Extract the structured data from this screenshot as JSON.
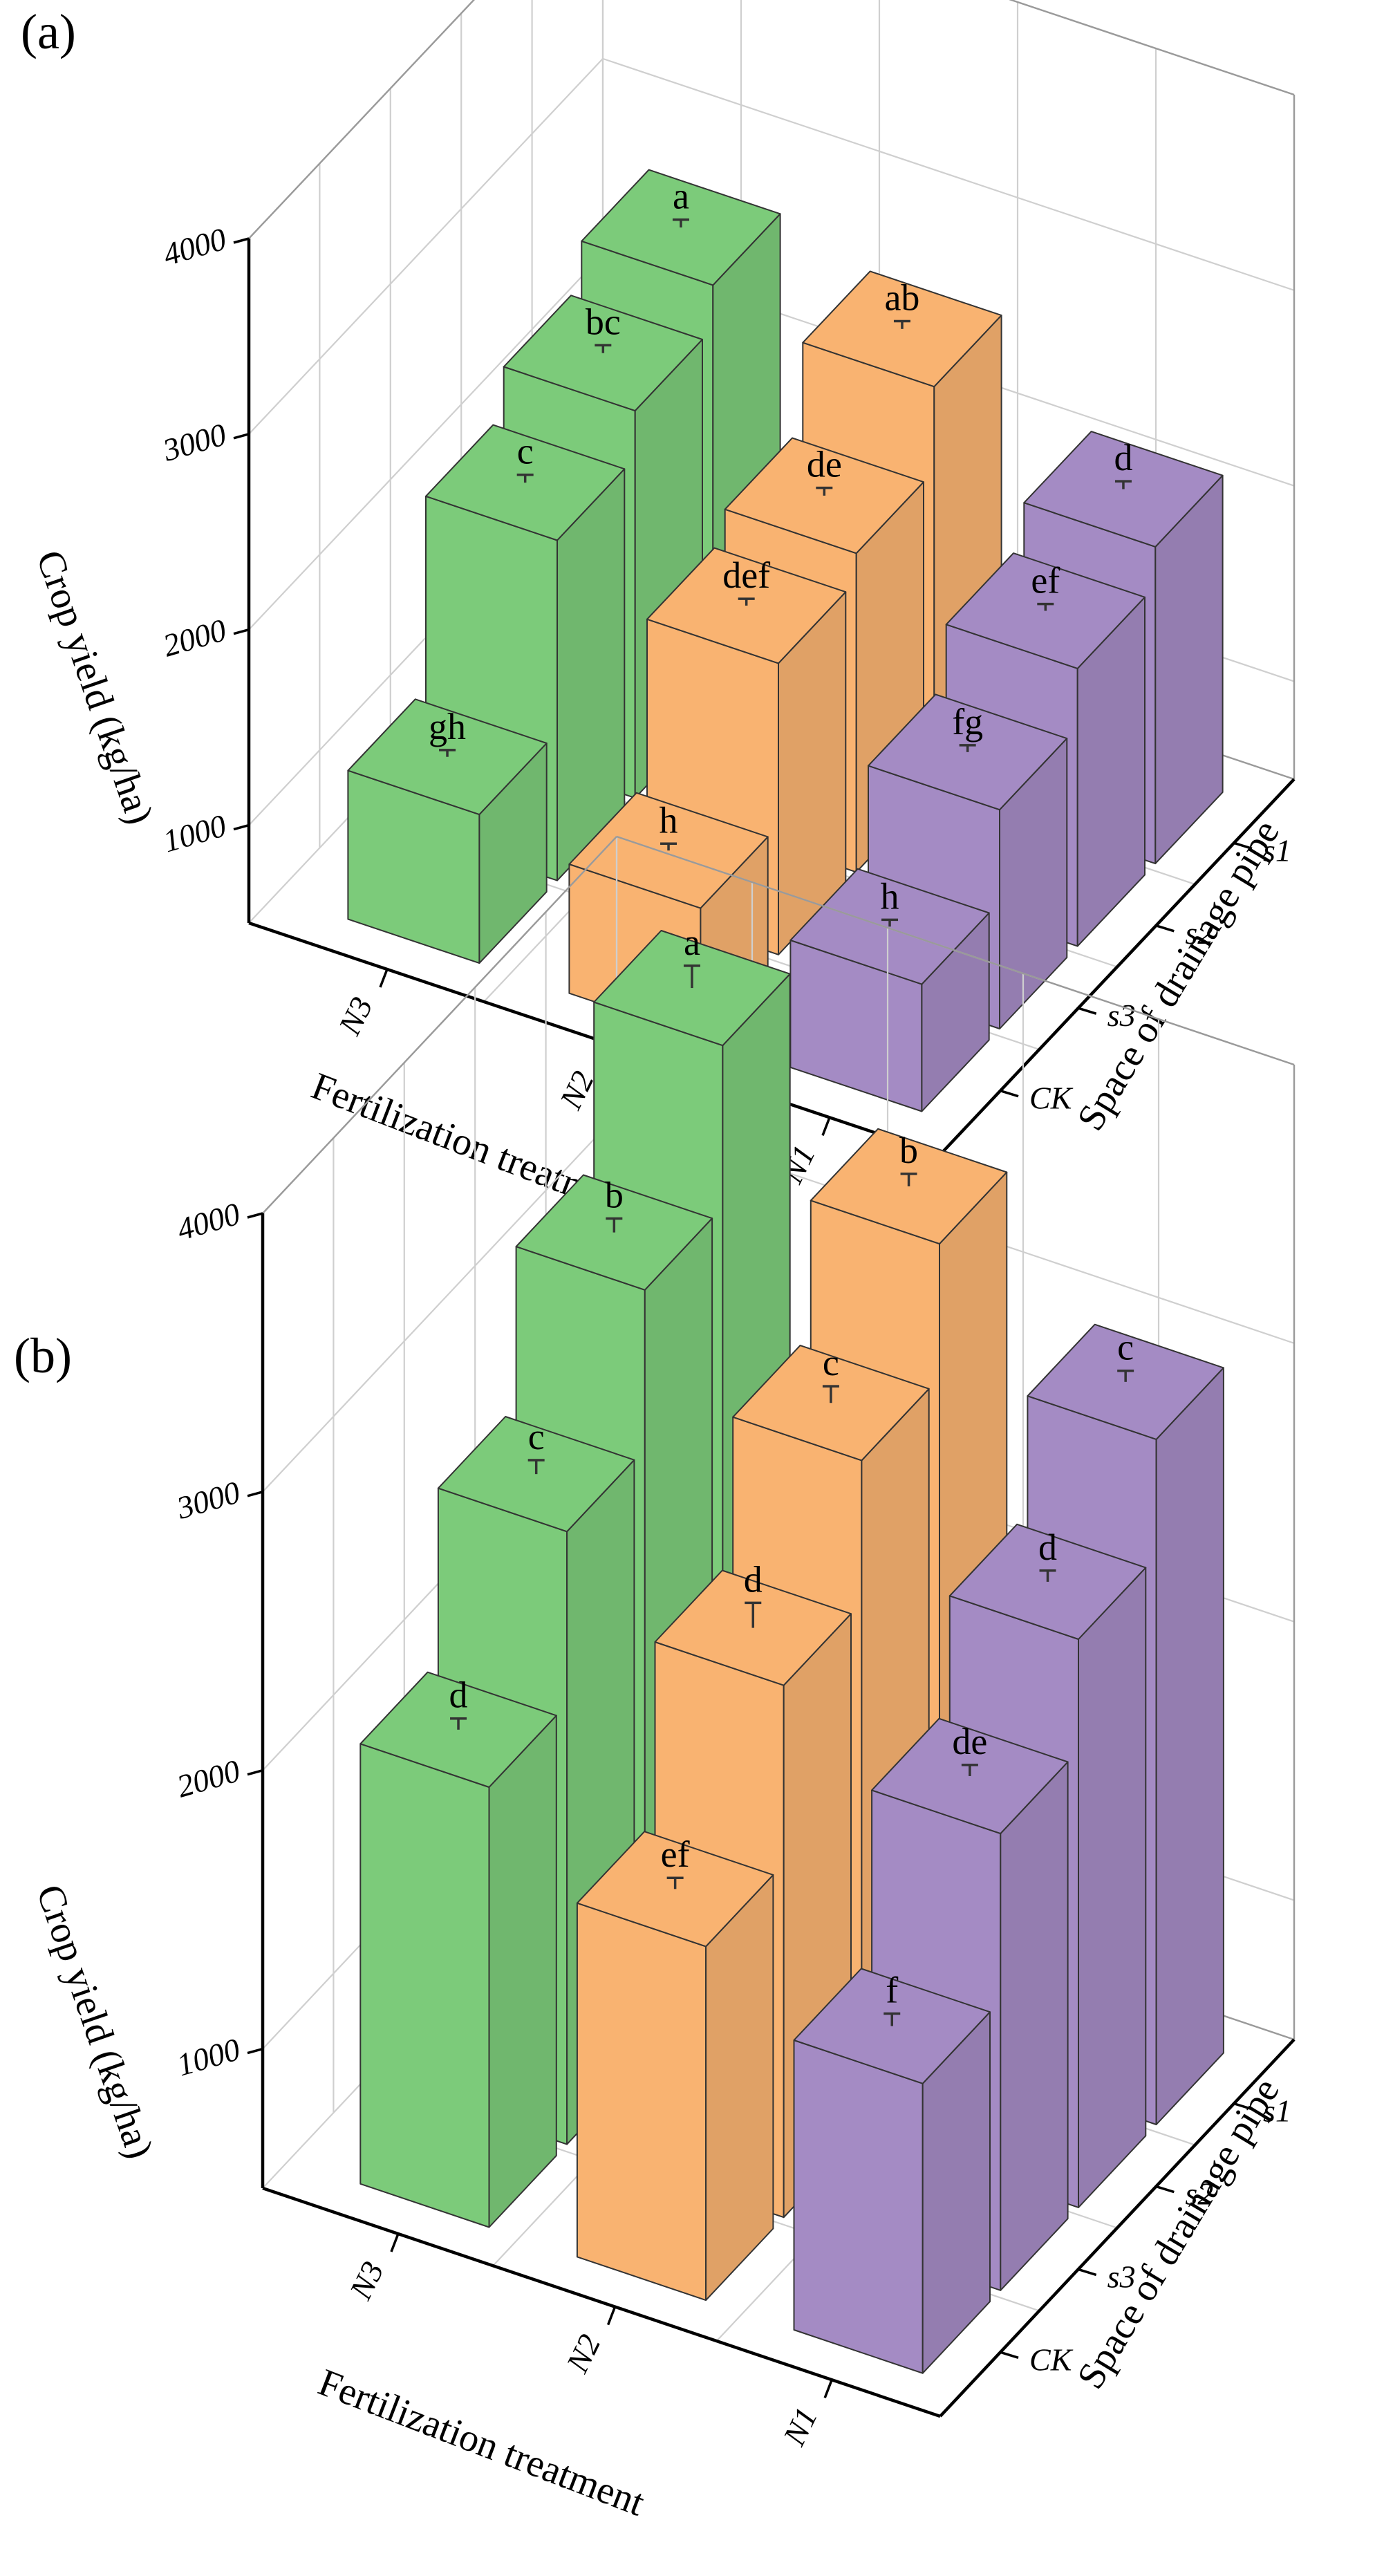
{
  "chart_data": [
    {
      "type": "bar3d",
      "panel": "(a)",
      "zlabel": "Crop yield (kg/ha)",
      "xlabel": "Fertilization treatment",
      "ylabel": "Space of drainage pipe",
      "x_categories": [
        "N3",
        "N2",
        "N1"
      ],
      "y_categories": [
        "S1",
        "S2",
        "S3",
        "CK"
      ],
      "zlim": [
        500,
        4000
      ],
      "zticks": [
        1000,
        2000,
        3000,
        4000
      ],
      "grid": true,
      "colors": {
        "N3": "#7ccb7a",
        "N2": "#f9b371",
        "N1": "#a48bc4"
      },
      "bars": [
        {
          "x": "N3",
          "y": "S1",
          "value": 2700,
          "error": 40,
          "sig": "a"
        },
        {
          "x": "N3",
          "y": "S2",
          "value": 2480,
          "error": 40,
          "sig": "bc"
        },
        {
          "x": "N3",
          "y": "S3",
          "value": 2240,
          "error": 40,
          "sig": "c"
        },
        {
          "x": "N3",
          "y": "CK",
          "value": 1260,
          "error": 35,
          "sig": "gh"
        },
        {
          "x": "N2",
          "y": "S1",
          "value": 2560,
          "error": 40,
          "sig": "ab"
        },
        {
          "x": "N2",
          "y": "S2",
          "value": 2130,
          "error": 40,
          "sig": "de"
        },
        {
          "x": "N2",
          "y": "S3",
          "value": 1990,
          "error": 35,
          "sig": "def"
        },
        {
          "x": "N2",
          "y": "CK",
          "value": 1160,
          "error": 35,
          "sig": "h"
        },
        {
          "x": "N1",
          "y": "S1",
          "value": 2120,
          "error": 40,
          "sig": "d"
        },
        {
          "x": "N1",
          "y": "S2",
          "value": 1920,
          "error": 35,
          "sig": "ef"
        },
        {
          "x": "N1",
          "y": "S3",
          "value": 1620,
          "error": 35,
          "sig": "fg"
        },
        {
          "x": "N1",
          "y": "CK",
          "value": 1150,
          "error": 35,
          "sig": "h"
        }
      ]
    },
    {
      "type": "bar3d",
      "panel": "(b)",
      "zlabel": "Crop yield (kg/ha)",
      "xlabel": "Fertilization treatment",
      "ylabel": "Space of drainage pipe",
      "x_categories": [
        "N3",
        "N2",
        "N1"
      ],
      "y_categories": [
        "S1",
        "S2",
        "S3",
        "CK"
      ],
      "zlim": [
        500,
        4000
      ],
      "zticks": [
        1000,
        2000,
        3000,
        4000
      ],
      "grid": true,
      "colors": {
        "N3": "#7ccb7a",
        "N2": "#f9b371",
        "N1": "#a48bc4"
      },
      "bars": [
        {
          "x": "N3",
          "y": "S1",
          "value": 3850,
          "error": 80,
          "sig": "a"
        },
        {
          "x": "N3",
          "y": "S2",
          "value": 3270,
          "error": 50,
          "sig": "b"
        },
        {
          "x": "N3",
          "y": "S3",
          "value": 2700,
          "error": 50,
          "sig": "c"
        },
        {
          "x": "N3",
          "y": "CK",
          "value": 2080,
          "error": 40,
          "sig": "d"
        },
        {
          "x": "N2",
          "y": "S1",
          "value": 3400,
          "error": 45,
          "sig": "b"
        },
        {
          "x": "N2",
          "y": "S2",
          "value": 2920,
          "error": 60,
          "sig": "c"
        },
        {
          "x": "N2",
          "y": "S3",
          "value": 2410,
          "error": 90,
          "sig": "d"
        },
        {
          "x": "N2",
          "y": "CK",
          "value": 1770,
          "error": 40,
          "sig": "ef"
        },
        {
          "x": "N1",
          "y": "S1",
          "value": 2960,
          "error": 40,
          "sig": "c"
        },
        {
          "x": "N1",
          "y": "S2",
          "value": 2540,
          "error": 40,
          "sig": "d"
        },
        {
          "x": "N1",
          "y": "S3",
          "value": 2140,
          "error": 40,
          "sig": "de"
        },
        {
          "x": "N1",
          "y": "CK",
          "value": 1540,
          "error": 45,
          "sig": "f"
        }
      ]
    }
  ]
}
